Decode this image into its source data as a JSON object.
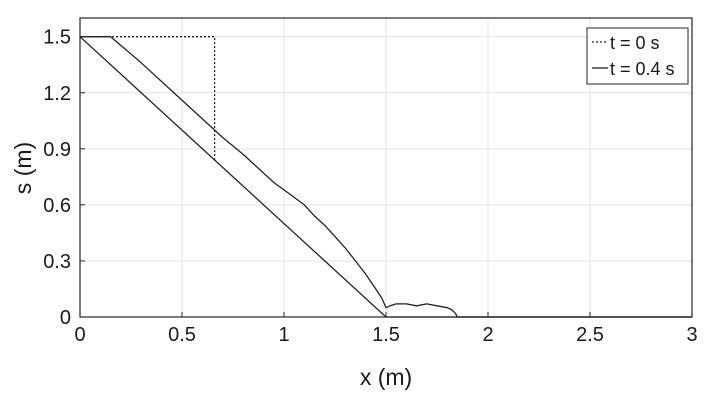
{
  "chart_data": {
    "type": "line",
    "xlabel": "x (m)",
    "ylabel": "s (m)",
    "xlim": [
      0,
      3
    ],
    "ylim": [
      0,
      1.6
    ],
    "xticks": [
      0,
      0.5,
      1,
      1.5,
      2,
      2.5,
      3
    ],
    "yticks": [
      0,
      0.3,
      0.6,
      0.9,
      1.2,
      1.5
    ],
    "xtick_labels": [
      "0",
      "0.5",
      "1",
      "1.5",
      "2",
      "2.5",
      "3"
    ],
    "ytick_labels": [
      "0",
      "0.3",
      "0.6",
      "0.9",
      "1.2",
      "1.5"
    ],
    "grid": true,
    "legend_position": "top-right",
    "base_line": {
      "x": [
        0,
        1.5,
        3
      ],
      "y": [
        1.5,
        0,
        0
      ]
    },
    "series": [
      {
        "name": "t = 0 s",
        "style": "dotted",
        "color": "#222222",
        "x": [
          0,
          0.66,
          0.66
        ],
        "y": [
          1.5,
          1.5,
          0.84
        ]
      },
      {
        "name": "t = 0.4 s",
        "style": "solid",
        "color": "#222222",
        "x": [
          0,
          0.15,
          0.3,
          0.45,
          0.6,
          0.7,
          0.8,
          0.9,
          0.95,
          1.0,
          1.05,
          1.1,
          1.15,
          1.2,
          1.25,
          1.3,
          1.35,
          1.4,
          1.45,
          1.48,
          1.5,
          1.52,
          1.55,
          1.6,
          1.65,
          1.7,
          1.75,
          1.8,
          1.82,
          1.84,
          1.85,
          1.9,
          2.0,
          3.0
        ],
        "y": [
          1.5,
          1.5,
          1.36,
          1.21,
          1.06,
          0.96,
          0.87,
          0.77,
          0.72,
          0.68,
          0.64,
          0.6,
          0.54,
          0.49,
          0.43,
          0.37,
          0.3,
          0.23,
          0.15,
          0.1,
          0.05,
          0.06,
          0.07,
          0.07,
          0.06,
          0.07,
          0.06,
          0.05,
          0.04,
          0.02,
          0.0,
          0.0,
          0.0,
          0.0
        ]
      }
    ]
  }
}
